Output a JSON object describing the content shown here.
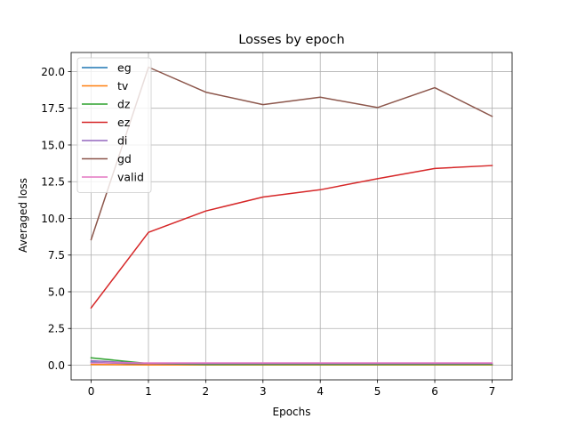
{
  "chart_data": {
    "type": "line",
    "title": "Losses by epoch",
    "xlabel": "Epochs",
    "ylabel": "Averaged loss",
    "x": [
      0,
      1,
      2,
      3,
      4,
      5,
      6,
      7
    ],
    "xlim": [
      -0.35,
      7.35
    ],
    "ylim": [
      -1.0,
      21.3
    ],
    "xticks": [
      0,
      1,
      2,
      3,
      4,
      5,
      6,
      7
    ],
    "yticks": [
      0.0,
      2.5,
      5.0,
      7.5,
      10.0,
      12.5,
      15.0,
      17.5,
      20.0
    ],
    "ytick_labels": [
      "0.0",
      "2.5",
      "5.0",
      "7.5",
      "10.0",
      "12.5",
      "15.0",
      "17.5",
      "20.0"
    ],
    "grid": true,
    "legend_position": "top-left",
    "series": [
      {
        "name": "eg",
        "color": "#1f77b4",
        "values": [
          0.2,
          0.05,
          0.02,
          0.02,
          0.02,
          0.02,
          0.02,
          0.02
        ]
      },
      {
        "name": "tv",
        "color": "#ff7f0e",
        "values": [
          0.05,
          0.02,
          0.02,
          0.02,
          0.02,
          0.02,
          0.02,
          0.02
        ]
      },
      {
        "name": "dz",
        "color": "#2ca02c",
        "values": [
          0.5,
          0.1,
          0.05,
          0.05,
          0.05,
          0.05,
          0.05,
          0.05
        ]
      },
      {
        "name": "ez",
        "color": "#d62728",
        "values": [
          3.9,
          9.05,
          10.5,
          11.45,
          11.95,
          12.7,
          13.4,
          13.6
        ]
      },
      {
        "name": "di",
        "color": "#9467bd",
        "values": [
          0.3,
          0.1,
          0.1,
          0.1,
          0.1,
          0.1,
          0.1,
          0.1
        ]
      },
      {
        "name": "gd",
        "color": "#8c564b",
        "values": [
          8.55,
          20.3,
          18.6,
          17.75,
          18.25,
          17.55,
          18.9,
          16.95
        ]
      },
      {
        "name": "valid",
        "color": "#e377c2",
        "values": [
          0.15,
          0.15,
          0.15,
          0.15,
          0.15,
          0.15,
          0.15,
          0.15
        ]
      }
    ]
  }
}
